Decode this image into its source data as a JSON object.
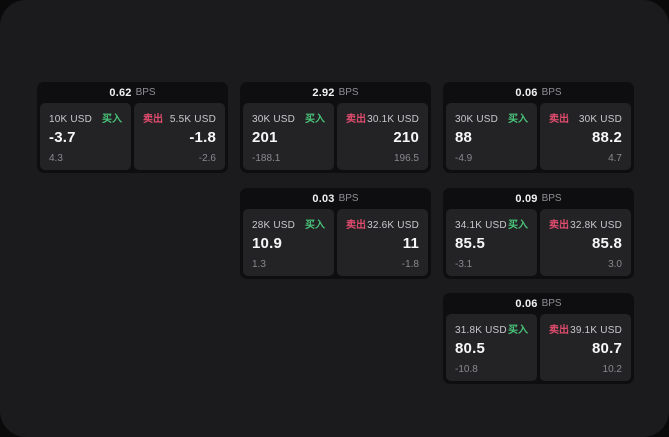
{
  "labels": {
    "buy": "买入",
    "sell": "卖出",
    "bps_suffix": "BPS"
  },
  "colors": {
    "page_bg": "#0a0a0b",
    "surface_bg": "#1b1b1d",
    "card_bg": "#0e0e10",
    "panel_bg": "#232326",
    "buy_green": "#49c478",
    "sell_red": "#df4b6d"
  },
  "cards": [
    {
      "bps": "0.62",
      "buy": {
        "amount": "10K USD",
        "value": "-3.7",
        "sub": "4.3"
      },
      "sell": {
        "amount": "5.5K USD",
        "value": "-1.8",
        "sub": "-2.6"
      }
    },
    {
      "bps": "2.92",
      "buy": {
        "amount": "30K USD",
        "value": "201",
        "sub": "-188.1"
      },
      "sell": {
        "amount": "30.1K USD",
        "value": "210",
        "sub": "196.5"
      }
    },
    {
      "bps": "0.06",
      "buy": {
        "amount": "30K USD",
        "value": "88",
        "sub": "-4.9"
      },
      "sell": {
        "amount": "30K USD",
        "value": "88.2",
        "sub": "4.7"
      }
    },
    {
      "bps": "0.03",
      "buy": {
        "amount": "28K USD",
        "value": "10.9",
        "sub": "1.3"
      },
      "sell": {
        "amount": "32.6K USD",
        "value": "11",
        "sub": "-1.8"
      }
    },
    {
      "bps": "0.09",
      "buy": {
        "amount": "34.1K USD",
        "value": "85.5",
        "sub": "-3.1"
      },
      "sell": {
        "amount": "32.8K USD",
        "value": "85.8",
        "sub": "3.0"
      }
    },
    {
      "bps": "0.06",
      "buy": {
        "amount": "31.8K USD",
        "value": "80.5",
        "sub": "-10.8"
      },
      "sell": {
        "amount": "39.1K USD",
        "value": "80.7",
        "sub": "10.2"
      }
    }
  ]
}
